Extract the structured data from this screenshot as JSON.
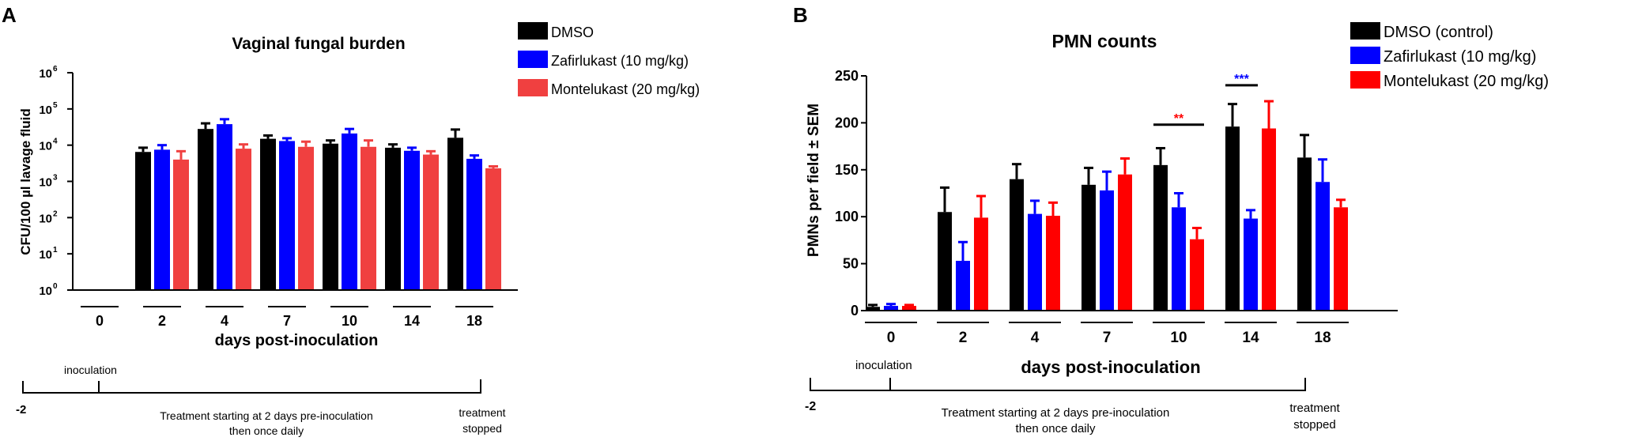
{
  "chart_data": [
    {
      "panel": "A",
      "type": "bar",
      "title": "Vaginal fungal burden",
      "ylabel": "CFU/100 µl lavage fluid",
      "xlabel": "days post-inoculation",
      "yscale": "log",
      "ylim": [
        1,
        1000000
      ],
      "yticks": [
        {
          "value": 1,
          "base": "10",
          "exp": "0"
        },
        {
          "value": 10,
          "base": "10",
          "exp": "1"
        },
        {
          "value": 100,
          "base": "10",
          "exp": "2"
        },
        {
          "value": 1000,
          "base": "10",
          "exp": "3"
        },
        {
          "value": 10000,
          "base": "10",
          "exp": "4"
        },
        {
          "value": 100000,
          "base": "10",
          "exp": "5"
        },
        {
          "value": 1000000,
          "base": "10",
          "exp": "6"
        }
      ],
      "categories": [
        "0",
        "2",
        "4",
        "7",
        "10",
        "14",
        "18"
      ],
      "series": [
        {
          "name": "DMSO",
          "color": "#000000",
          "values": [
            null,
            6500,
            28000,
            15000,
            11000,
            8500,
            16000
          ],
          "errors": [
            null,
            8500,
            40000,
            18500,
            13500,
            10500,
            27000
          ]
        },
        {
          "name": "Zafirlukast (10 mg/kg)",
          "color": "#0000ff",
          "values": [
            null,
            7500,
            38000,
            13000,
            21000,
            7000,
            4200
          ],
          "errors": [
            null,
            10000,
            52000,
            15500,
            28000,
            8500,
            5200
          ]
        },
        {
          "name": "Montelukast (20 mg/kg)",
          "color": "#f04040",
          "values": [
            null,
            4000,
            8000,
            9000,
            9000,
            5500,
            2300
          ],
          "errors": [
            null,
            6800,
            10500,
            12500,
            13500,
            6800,
            2600
          ]
        }
      ],
      "timeline": {
        "start_label": "-2",
        "inoculation_label": "inoculation",
        "treatment_line1": "Treatment starting at 2 days pre-inoculation",
        "treatment_line2": "then once daily",
        "stop_line1": "treatment",
        "stop_line2": "stopped"
      }
    },
    {
      "panel": "B",
      "type": "bar",
      "title": "PMN counts",
      "ylabel": "PMNs per field ± SEM",
      "xlabel": "days post-inoculation",
      "yscale": "linear",
      "ylim": [
        0,
        250
      ],
      "yticks": [
        {
          "value": 0,
          "label": "0"
        },
        {
          "value": 50,
          "label": "50"
        },
        {
          "value": 100,
          "label": "100"
        },
        {
          "value": 150,
          "label": "150"
        },
        {
          "value": 200,
          "label": "200"
        },
        {
          "value": 250,
          "label": "250"
        }
      ],
      "categories": [
        "0",
        "2",
        "4",
        "7",
        "10",
        "14",
        "18"
      ],
      "series": [
        {
          "name": "DMSO (control)",
          "color": "#000000",
          "values": [
            4,
            105,
            140,
            134,
            155,
            196,
            163
          ],
          "errors": [
            6,
            131,
            156,
            152,
            173,
            220,
            187
          ]
        },
        {
          "name": "Zafirlukast (10 mg/kg)",
          "color": "#0000ff",
          "values": [
            5,
            53,
            103,
            128,
            110,
            98,
            137
          ],
          "errors": [
            7,
            73,
            117,
            148,
            125,
            107,
            161
          ]
        },
        {
          "name": "Montelukast (20 mg/kg)",
          "color": "#ff0000",
          "values": [
            5,
            99,
            101,
            145,
            76,
            194,
            110
          ],
          "errors": [
            6,
            122,
            115,
            162,
            88,
            223,
            118
          ]
        }
      ],
      "significance": [
        {
          "label": "**",
          "category": "10",
          "from_series": 0,
          "to_series": 2,
          "color": "#ff0000",
          "y": 198
        },
        {
          "label": "***",
          "category": "14",
          "from_series": 0,
          "to_series": 1,
          "color": "#0000ff",
          "y": 240
        }
      ],
      "timeline": {
        "start_label": "-2",
        "inoculation_label": "inoculation",
        "treatment_line1": "Treatment starting at 2 days pre-inoculation",
        "treatment_line2": "then once daily",
        "stop_line1": "treatment",
        "stop_line2": "stopped"
      }
    }
  ]
}
